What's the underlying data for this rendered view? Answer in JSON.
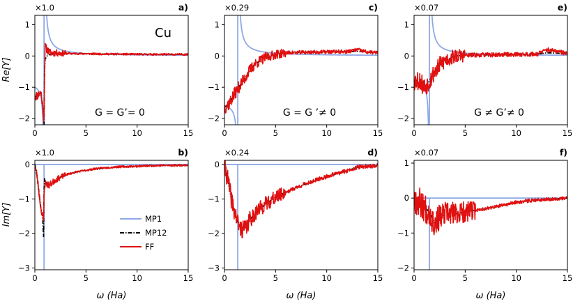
{
  "figure": {
    "xlabel": "ω (Ha)",
    "ylabel_top": "Re[Y]",
    "ylabel_bottom": "Im[Y]",
    "element_label": "Cu",
    "colors": {
      "MP1": "#8fa8e6",
      "MP12": "#000000",
      "FF": "#e01010"
    }
  },
  "chart_data": [
    {
      "id": "a",
      "panel_label": "a)",
      "scale": "×1.0",
      "annotation": "G = G’= 0",
      "type": "line",
      "xlim": [
        0,
        15
      ],
      "ylim": [
        -2.2,
        1.3
      ],
      "xticks": [
        "0",
        "5",
        "10",
        "15"
      ],
      "yticks": [
        "1",
        "0",
        "−1",
        "−2"
      ],
      "ytick_values": [
        1,
        0,
        -1,
        -2
      ],
      "series": [
        {
          "name": "MP1",
          "kind": "pole_re",
          "x": [],
          "values": [],
          "params": {
            "w0": 0.9,
            "a": 0.33,
            "d": -1.0
          }
        },
        {
          "name": "MP12",
          "x": [
            0,
            0.3,
            0.6,
            0.8,
            0.9,
            0.95,
            1.0,
            1.2,
            1.5,
            2,
            3,
            5,
            8,
            12,
            15
          ],
          "values": [
            -1.3,
            -1.25,
            -1.15,
            -1.7,
            -2.2,
            -0.5,
            -0.1,
            0.0,
            0.05,
            0.08,
            0.08,
            0.07,
            0.06,
            0.05,
            0.05
          ]
        },
        {
          "name": "FF",
          "x": [
            0,
            0.3,
            0.6,
            0.8,
            0.9,
            0.95,
            1.0,
            1.2,
            1.5,
            2,
            3,
            5,
            8,
            12,
            15
          ],
          "values": [
            -1.3,
            -1.25,
            -1.15,
            -1.7,
            -2.1,
            -0.4,
            0.3,
            0.2,
            0.1,
            0.1,
            0.08,
            0.07,
            0.06,
            0.05,
            0.05
          ],
          "noise": [
            0.15,
            0.03,
            3
          ],
          "seed": 11
        }
      ]
    },
    {
      "id": "b",
      "panel_label": "b)",
      "scale": "×1.0",
      "annotation": "",
      "type": "line",
      "xlim": [
        0,
        15
      ],
      "ylim": [
        -3.05,
        0.12
      ],
      "xticks": [
        "0",
        "5",
        "10",
        "15"
      ],
      "yticks": [
        "0",
        "−1",
        "−2",
        "−3"
      ],
      "ytick_values": [
        0,
        -1,
        -2,
        -3
      ],
      "series": [
        {
          "name": "MP1",
          "kind": "pole_im",
          "x": [],
          "values": [],
          "params": {
            "w0": 0.9
          }
        },
        {
          "name": "MP12",
          "x": [
            0,
            0.2,
            0.4,
            0.6,
            0.75,
            0.85,
            0.9,
            0.95,
            1.05,
            1.4,
            2,
            3,
            4,
            6,
            8,
            10,
            12,
            15
          ],
          "values": [
            0,
            -0.3,
            -0.8,
            -1.3,
            -1.45,
            -2.1,
            -0.8,
            -0.4,
            -0.5,
            -0.6,
            -0.45,
            -0.3,
            -0.22,
            -0.12,
            -0.07,
            -0.05,
            -0.03,
            -0.02
          ]
        },
        {
          "name": "FF",
          "x": [
            0,
            0.2,
            0.4,
            0.6,
            0.75,
            0.85,
            0.9,
            0.95,
            1.05,
            1.4,
            2,
            3,
            4,
            6,
            8,
            10,
            12,
            15
          ],
          "values": [
            0,
            -0.3,
            -0.8,
            -1.3,
            -1.45,
            -1.7,
            -1.0,
            -0.6,
            -0.55,
            -0.6,
            -0.45,
            -0.3,
            -0.22,
            -0.12,
            -0.07,
            -0.05,
            -0.03,
            -0.02
          ],
          "noise": [
            0.12,
            0.03,
            3
          ],
          "seed": 23
        }
      ],
      "legend": [
        "MP1",
        "MP12",
        "FF"
      ]
    },
    {
      "id": "c",
      "panel_label": "c)",
      "scale": "×0.29",
      "annotation": "G = G ’≠ 0",
      "type": "line",
      "xlim": [
        0,
        15
      ],
      "ylim": [
        -2.2,
        1.3
      ],
      "xticks": [
        "0",
        "5",
        "10",
        "15"
      ],
      "yticks": [
        "1",
        "0",
        "−1",
        "−2"
      ],
      "ytick_values": [
        1,
        0,
        -1,
        -2
      ],
      "series": [
        {
          "name": "MP1",
          "kind": "pole_re",
          "x": [],
          "values": [],
          "params": {
            "w0": 1.3,
            "a": 0.33,
            "d": -1.6
          }
        },
        {
          "name": "MP12",
          "x": [
            0,
            0.5,
            1,
            1.5,
            2,
            2.5,
            3,
            4,
            5,
            6,
            8,
            10,
            12,
            13,
            14,
            15
          ],
          "values": [
            -1.65,
            -1.5,
            -1.2,
            -0.95,
            -0.7,
            -0.45,
            -0.25,
            -0.05,
            0.05,
            0.1,
            0.12,
            0.13,
            0.14,
            0.15,
            0.12,
            0.1
          ]
        },
        {
          "name": "FF",
          "x": [
            0,
            0.5,
            1,
            1.5,
            2,
            2.5,
            3,
            4,
            5,
            6,
            8,
            10,
            12,
            13,
            14,
            15
          ],
          "values": [
            -1.65,
            -1.5,
            -1.2,
            -0.95,
            -0.7,
            -0.45,
            -0.25,
            -0.05,
            0.05,
            0.1,
            0.12,
            0.13,
            0.14,
            0.2,
            0.12,
            0.1
          ],
          "noise": [
            0.22,
            0.06,
            6
          ],
          "seed": 37
        }
      ]
    },
    {
      "id": "d",
      "panel_label": "d)",
      "scale": "×0.24",
      "annotation": "",
      "type": "line",
      "xlim": [
        0,
        15
      ],
      "ylim": [
        -3.05,
        0.12
      ],
      "xticks": [
        "0",
        "5",
        "10",
        "15"
      ],
      "yticks": [
        "0",
        "−1",
        "−2",
        "−3"
      ],
      "ytick_values": [
        0,
        -1,
        -2,
        -3
      ],
      "series": [
        {
          "name": "MP1",
          "kind": "pole_im",
          "x": [],
          "values": [],
          "params": {
            "w0": 1.3
          }
        },
        {
          "name": "MP12",
          "x": [
            0,
            0.3,
            0.6,
            1,
            1.5,
            2,
            2.5,
            3,
            4,
            5,
            6,
            8,
            10,
            12,
            13,
            14,
            15
          ],
          "values": [
            0,
            -0.4,
            -0.9,
            -1.4,
            -1.8,
            -1.85,
            -1.6,
            -1.4,
            -1.15,
            -0.95,
            -0.8,
            -0.55,
            -0.35,
            -0.18,
            -0.08,
            -0.05,
            -0.04
          ]
        },
        {
          "name": "FF",
          "x": [
            0,
            0.3,
            0.6,
            1,
            1.5,
            2,
            2.5,
            3,
            4,
            5,
            6,
            8,
            10,
            12,
            13,
            14,
            15
          ],
          "values": [
            0,
            -0.4,
            -0.9,
            -1.4,
            -1.85,
            -1.9,
            -1.6,
            -1.4,
            -1.15,
            -0.95,
            -0.8,
            -0.55,
            -0.35,
            -0.18,
            -0.08,
            -0.05,
            -0.04
          ],
          "noise": [
            0.3,
            0.06,
            6
          ],
          "seed": 41
        }
      ]
    },
    {
      "id": "e",
      "panel_label": "e)",
      "scale": "×0.07",
      "annotation": "G ≠ G’≠ 0",
      "type": "line",
      "xlim": [
        0,
        15
      ],
      "ylim": [
        -2.2,
        1.3
      ],
      "xticks": [
        "0",
        "5",
        "10",
        "15"
      ],
      "yticks": [
        "1",
        "0",
        "−1",
        "−2"
      ],
      "ytick_values": [
        1,
        0,
        -1,
        -2
      ],
      "series": [
        {
          "name": "MP1",
          "kind": "pole_re",
          "x": [],
          "values": [],
          "params": {
            "w0": 1.5,
            "a": 0.33,
            "d": -0.8
          }
        },
        {
          "name": "MP12",
          "x": [
            0,
            0.5,
            1,
            1.5,
            2,
            2.5,
            3,
            4,
            5,
            6,
            8,
            10,
            12,
            13,
            15
          ],
          "values": [
            -0.8,
            -0.75,
            -1.0,
            -0.8,
            -0.5,
            -0.3,
            -0.15,
            0.0,
            0.02,
            0.03,
            0.04,
            0.05,
            0.06,
            0.1,
            0.08
          ]
        },
        {
          "name": "FF",
          "x": [
            0,
            0.5,
            1,
            1.5,
            2,
            2.5,
            3,
            4,
            5,
            6,
            8,
            10,
            12,
            13,
            15
          ],
          "values": [
            -0.8,
            -0.75,
            -1.0,
            -0.8,
            -0.5,
            -0.3,
            -0.15,
            0.0,
            0.02,
            0.03,
            0.04,
            0.05,
            0.06,
            0.2,
            0.08
          ],
          "noise": [
            0.35,
            0.07,
            5
          ],
          "seed": 53
        }
      ]
    },
    {
      "id": "f",
      "panel_label": "f)",
      "scale": "×0.07",
      "annotation": "",
      "type": "line",
      "xlim": [
        0,
        15
      ],
      "ylim": [
        -2.05,
        1.08
      ],
      "xticks": [
        "0",
        "5",
        "10",
        "15"
      ],
      "yticks": [
        "1",
        "0",
        "−1",
        "−2"
      ],
      "ytick_values": [
        1,
        0,
        -1,
        -2
      ],
      "series": [
        {
          "name": "MP1",
          "kind": "pole_im",
          "x": [],
          "values": [],
          "params": {
            "w0": 1.5
          }
        },
        {
          "name": "MP12",
          "x": [
            0,
            0.5,
            1,
            1.5,
            2,
            2.5,
            3,
            4,
            5,
            6,
            8,
            10,
            12,
            15
          ],
          "values": [
            0,
            -0.1,
            -0.25,
            -0.4,
            -0.7,
            -0.55,
            -0.45,
            -0.45,
            -0.4,
            -0.35,
            -0.25,
            -0.12,
            -0.05,
            0
          ]
        },
        {
          "name": "FF",
          "x": [
            0,
            0.5,
            1,
            1.5,
            2,
            2.5,
            3,
            4,
            5,
            6,
            8,
            10,
            12,
            15
          ],
          "values": [
            0,
            -0.1,
            -0.25,
            -0.4,
            -0.75,
            -0.55,
            -0.45,
            -0.45,
            -0.4,
            -0.35,
            -0.25,
            -0.12,
            -0.05,
            0
          ],
          "noise": [
            0.45,
            0.05,
            6
          ],
          "seed": 67
        }
      ]
    }
  ]
}
